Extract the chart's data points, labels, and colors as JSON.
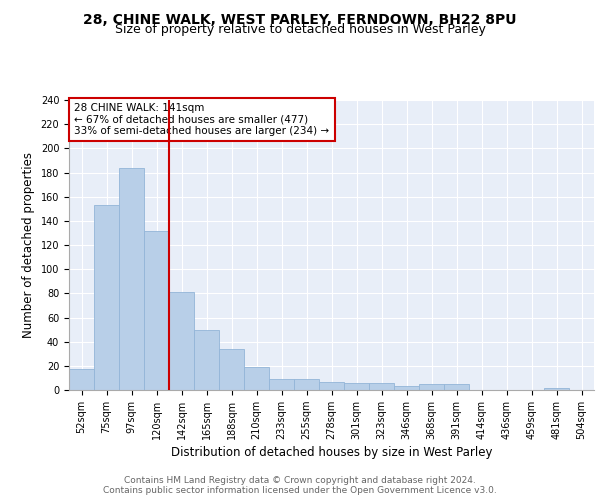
{
  "title1": "28, CHINE WALK, WEST PARLEY, FERNDOWN, BH22 8PU",
  "title2": "Size of property relative to detached houses in West Parley",
  "xlabel": "Distribution of detached houses by size in West Parley",
  "ylabel": "Number of detached properties",
  "footer1": "Contains HM Land Registry data © Crown copyright and database right 2024.",
  "footer2": "Contains public sector information licensed under the Open Government Licence v3.0.",
  "bar_labels": [
    "52sqm",
    "75sqm",
    "97sqm",
    "120sqm",
    "142sqm",
    "165sqm",
    "188sqm",
    "210sqm",
    "233sqm",
    "255sqm",
    "278sqm",
    "301sqm",
    "323sqm",
    "346sqm",
    "368sqm",
    "391sqm",
    "414sqm",
    "436sqm",
    "459sqm",
    "481sqm",
    "504sqm"
  ],
  "bar_values": [
    17,
    153,
    184,
    132,
    81,
    50,
    34,
    19,
    9,
    9,
    7,
    6,
    6,
    3,
    5,
    5,
    0,
    0,
    0,
    2,
    0
  ],
  "bar_color": "#b8cfe8",
  "bar_edge_color": "#93b5d8",
  "vline_color": "#cc0000",
  "annotation_text": "28 CHINE WALK: 141sqm\n← 67% of detached houses are smaller (477)\n33% of semi-detached houses are larger (234) →",
  "annotation_box_color": "white",
  "annotation_box_edge": "#cc0000",
  "ylim": [
    0,
    240
  ],
  "yticks": [
    0,
    20,
    40,
    60,
    80,
    100,
    120,
    140,
    160,
    180,
    200,
    220,
    240
  ],
  "background_color": "#e8eef8",
  "grid_color": "white",
  "title_fontsize": 10,
  "subtitle_fontsize": 9,
  "axis_label_fontsize": 8.5,
  "tick_fontsize": 7,
  "footer_fontsize": 6.5,
  "annotation_fontsize": 7.5
}
